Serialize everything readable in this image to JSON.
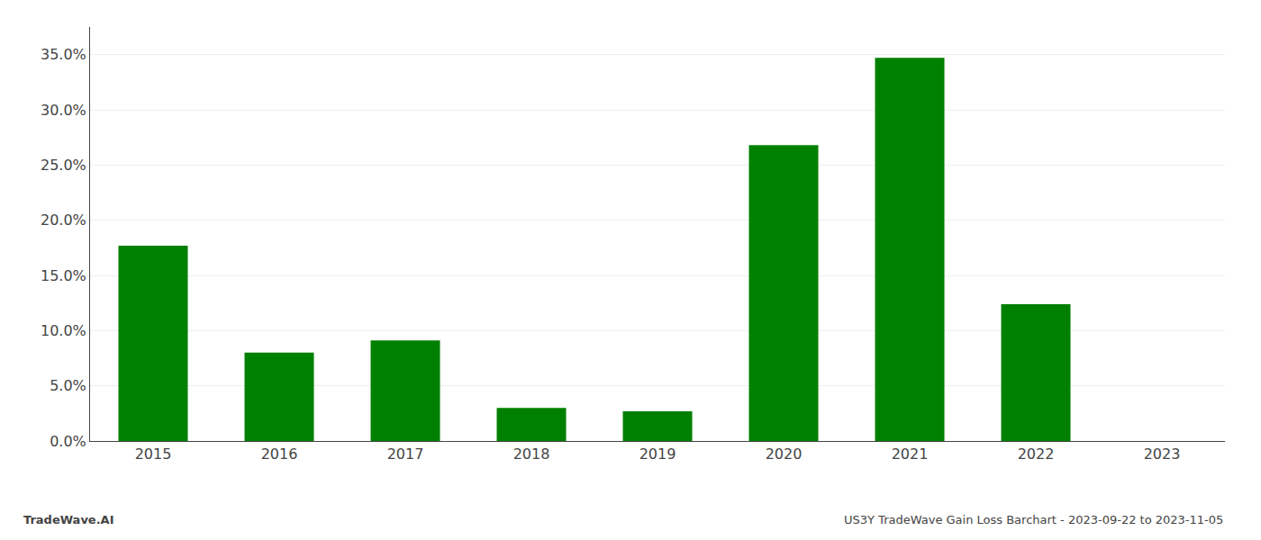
{
  "chart_data": {
    "type": "bar",
    "categories": [
      "2015",
      "2016",
      "2017",
      "2018",
      "2019",
      "2020",
      "2021",
      "2022",
      "2023"
    ],
    "values": [
      0.177,
      0.08,
      0.091,
      0.03,
      0.027,
      0.268,
      0.347,
      0.124,
      0.0
    ],
    "color": "#008000",
    "ylim": [
      0,
      0.375
    ],
    "yticks": [
      {
        "value": 0.0,
        "label": "0.0%"
      },
      {
        "value": 0.05,
        "label": "5.0%"
      },
      {
        "value": 0.1,
        "label": "10.0%"
      },
      {
        "value": 0.15,
        "label": "15.0%"
      },
      {
        "value": 0.2,
        "label": "20.0%"
      },
      {
        "value": 0.25,
        "label": "25.0%"
      },
      {
        "value": 0.3,
        "label": "30.0%"
      },
      {
        "value": 0.35,
        "label": "35.0%"
      }
    ],
    "grid": true,
    "annotations": [
      "TradeWave.AI",
      "US3Y TradeWave Gain Loss Barchart - 2023-09-22 to 2023-11-05"
    ]
  }
}
